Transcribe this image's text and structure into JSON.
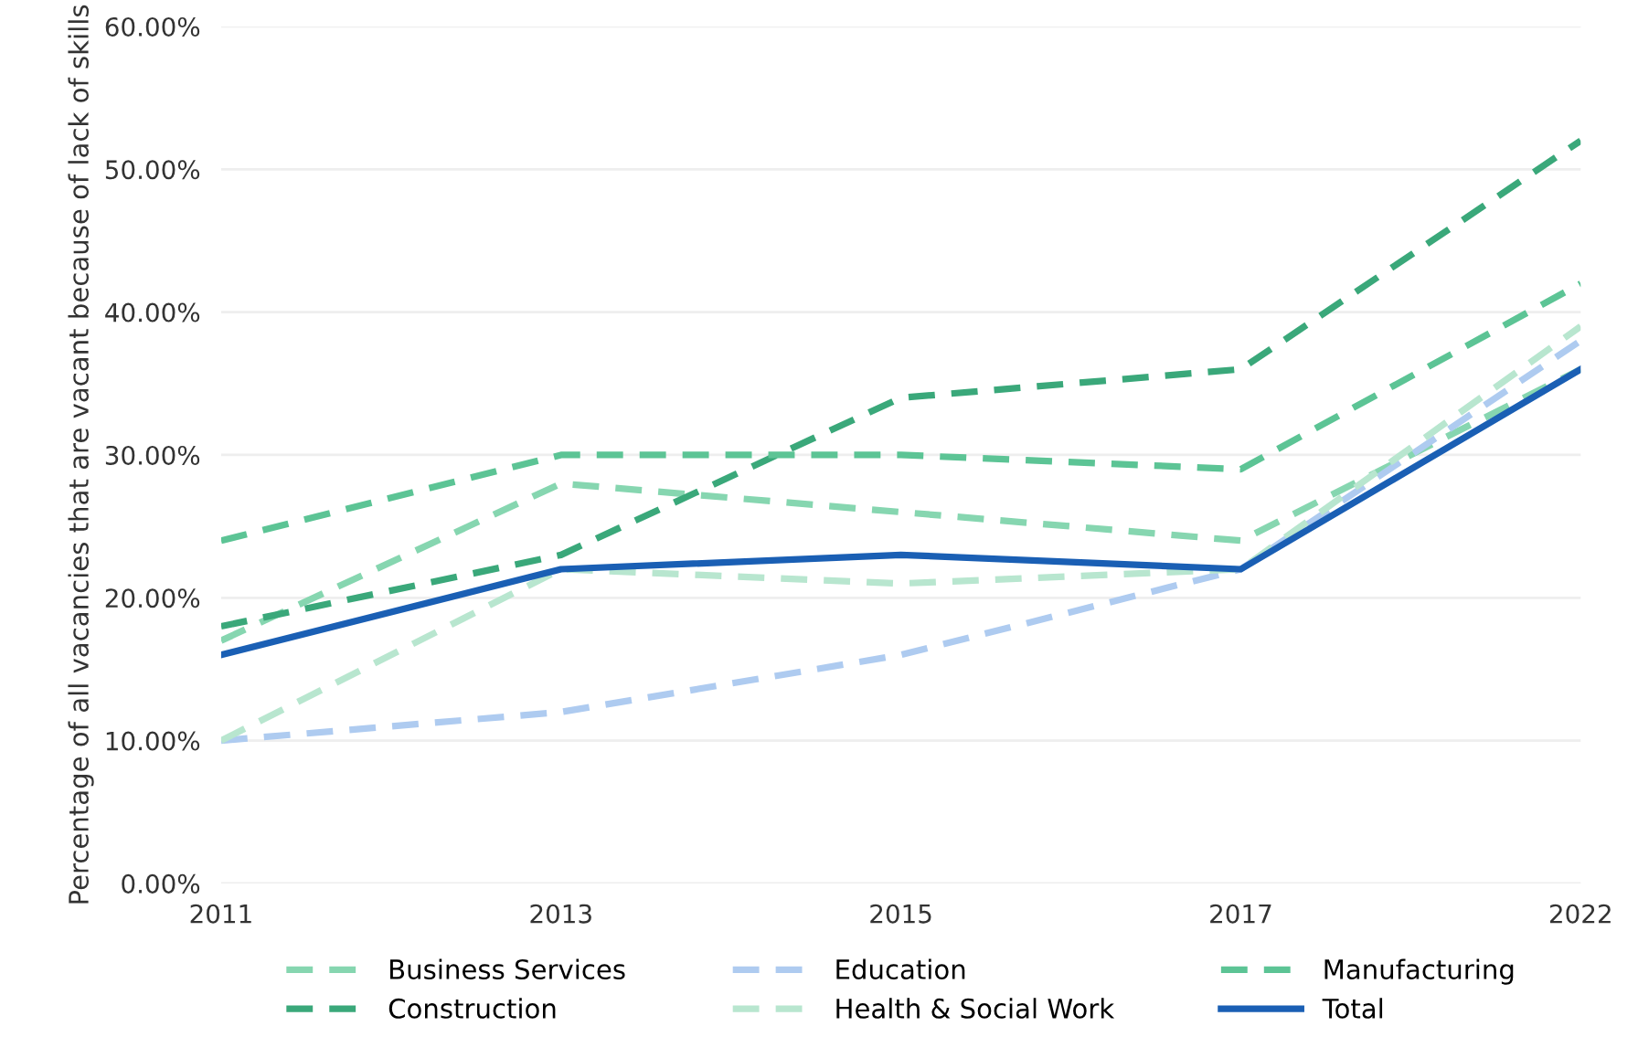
{
  "chart_data": {
    "type": "line",
    "ylabel": "Percentage of all vacancies that are vacant because of lack of skills",
    "categories": [
      "2011",
      "2013",
      "2015",
      "2017",
      "2022"
    ],
    "series": [
      {
        "name": "Business Services",
        "color": "#86d6b0",
        "values": [
          17,
          28,
          26,
          24,
          36
        ],
        "line_style": "dashed"
      },
      {
        "name": "Construction",
        "color": "#3aa87a",
        "values": [
          18,
          23,
          34,
          36,
          52
        ],
        "line_style": "dashed"
      },
      {
        "name": "Education",
        "color": "#aecbf0",
        "values": [
          10,
          12,
          16,
          22,
          38
        ],
        "line_style": "dashed"
      },
      {
        "name": "Health & Social Work",
        "color": "#b8e6cf",
        "values": [
          10,
          22,
          21,
          22,
          39
        ],
        "line_style": "dashed"
      },
      {
        "name": "Manufacturing",
        "color": "#5cc495",
        "values": [
          24,
          30,
          30,
          29,
          42
        ],
        "line_style": "dashed"
      },
      {
        "name": "Total",
        "color": "#1a5fb4",
        "values": [
          16,
          22,
          23,
          22,
          36
        ],
        "line_style": "solid"
      }
    ],
    "ylim": [
      0,
      60
    ],
    "yticks": [
      {
        "value": 0,
        "label": "0.00%"
      },
      {
        "value": 10,
        "label": "10.00%"
      },
      {
        "value": 20,
        "label": "20.00%"
      },
      {
        "value": 30,
        "label": "30.00%"
      },
      {
        "value": 40,
        "label": "40.00%"
      },
      {
        "value": 50,
        "label": "50.00%"
      },
      {
        "value": 60,
        "label": "60.00%"
      }
    ],
    "grid": "y",
    "legend": "bottom",
    "marker": "none"
  }
}
